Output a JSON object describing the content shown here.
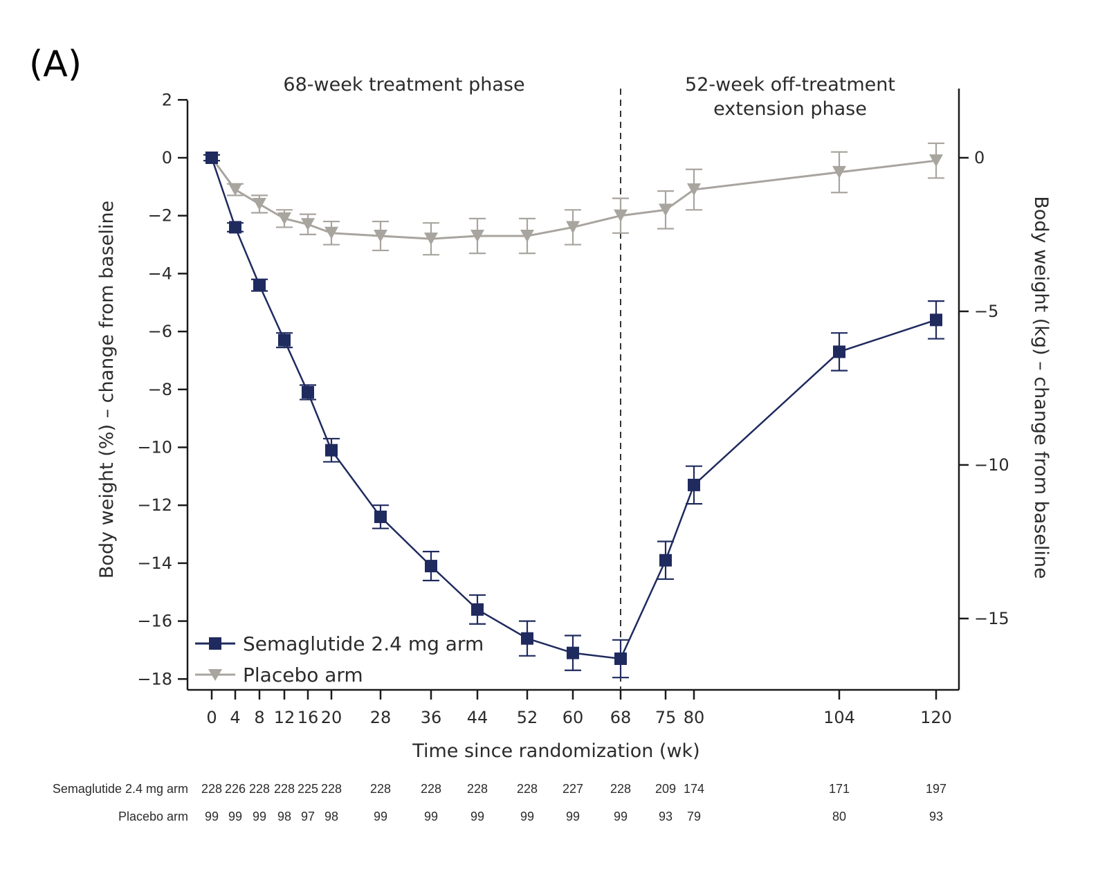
{
  "panel_label": "(A)",
  "chart_data": {
    "type": "line",
    "title": "",
    "phases": [
      {
        "label_lines": [
          "68-week treatment phase"
        ],
        "from_week": 0,
        "to_week": 68
      },
      {
        "label_lines": [
          "52-week off-treatment",
          "extension phase"
        ],
        "from_week": 68,
        "to_week": 120
      }
    ],
    "phase_divider_week": 68,
    "xlabel": "Time since randomization (wk)",
    "ylabel": "Body weight (%) – change from baseline",
    "y2label": "Body weight (kg) – change from baseline",
    "x": [
      0,
      4,
      8,
      12,
      16,
      20,
      28,
      36,
      44,
      52,
      60,
      68,
      75,
      80,
      104,
      120
    ],
    "x_tick_labels": [
      "0",
      "4",
      "8",
      "12",
      "16",
      "20",
      "28",
      "36",
      "44",
      "52",
      "60",
      "68",
      "75",
      "80",
      "104",
      "120"
    ],
    "ylim": [
      -18.4,
      2
    ],
    "y_ticks": [
      2,
      0,
      -2,
      -4,
      -6,
      -8,
      -10,
      -12,
      -14,
      -16,
      -18
    ],
    "y_tick_labels": [
      "2",
      "0",
      "−2",
      "−4",
      "−6",
      "−8",
      "−10",
      "−12",
      "−14",
      "−16",
      "−18"
    ],
    "y2_ticks": [
      0,
      -5,
      -10,
      -15
    ],
    "y2_tick_labels": [
      "0",
      "−5",
      "−10",
      "−15"
    ],
    "y2_per_y1": 0.9427,
    "legend_position": "bottom-left",
    "series": [
      {
        "name": "Semaglutide 2.4 mg arm",
        "marker": "square",
        "color": "#1f2a5e",
        "values": [
          0.0,
          -2.4,
          -4.4,
          -6.3,
          -8.1,
          -10.1,
          -12.4,
          -14.1,
          -15.6,
          -16.6,
          -17.1,
          -17.3,
          -13.9,
          -11.3,
          -6.7,
          -5.6
        ],
        "error": [
          0.1,
          0.15,
          0.2,
          0.25,
          0.25,
          0.4,
          0.4,
          0.5,
          0.5,
          0.6,
          0.6,
          0.65,
          0.65,
          0.65,
          0.65,
          0.65
        ]
      },
      {
        "name": "Placebo arm",
        "marker": "triangle-down",
        "color": "#a8a49e",
        "values": [
          0.0,
          -1.1,
          -1.6,
          -2.1,
          -2.3,
          -2.6,
          -2.7,
          -2.8,
          -2.7,
          -2.7,
          -2.4,
          -2.0,
          -1.8,
          -1.1,
          -0.5,
          -0.1
        ],
        "error": [
          0.1,
          0.2,
          0.3,
          0.3,
          0.35,
          0.4,
          0.5,
          0.55,
          0.6,
          0.6,
          0.6,
          0.6,
          0.65,
          0.7,
          0.7,
          0.6
        ]
      }
    ],
    "risk_table": {
      "rows": [
        {
          "label": "Semaglutide 2.4 mg arm",
          "counts": [
            "228",
            "226",
            "228",
            "228",
            "225",
            "228",
            "228",
            "228",
            "228",
            "228",
            "227",
            "228",
            "209",
            "174",
            "171",
            "197"
          ]
        },
        {
          "label": "Placebo arm",
          "counts": [
            "99",
            "99",
            "99",
            "98",
            "97",
            "98",
            "99",
            "99",
            "99",
            "99",
            "99",
            "99",
            "93",
            "79",
            "80",
            "93"
          ]
        }
      ]
    }
  }
}
